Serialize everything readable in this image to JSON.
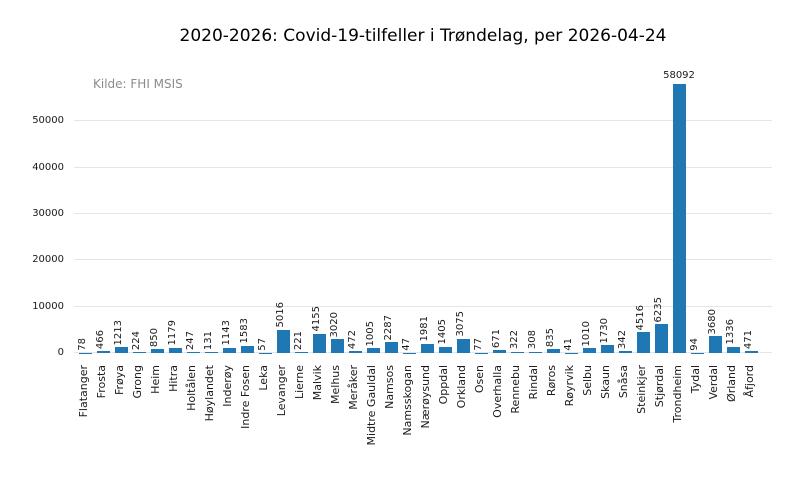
{
  "figure": {
    "title": "2020-2026: Covid-19-tilfeller i Trøndelag, per 2026-04-24",
    "annotation": "Kilde: FHI MSIS"
  },
  "chart_data": {
    "type": "bar",
    "title": "2020-2026: Covid-19-tilfeller i Trøndelag, per 2026-04-24",
    "annotation": "Kilde: FHI MSIS",
    "xlabel": "",
    "ylabel": "",
    "categories": [
      "Flatanger",
      "Frosta",
      "Frøya",
      "Grong",
      "Heim",
      "Hitra",
      "Holtålen",
      "Høylandet",
      "Inderøy",
      "Indre Fosen",
      "Leka",
      "Levanger",
      "Lierne",
      "Malvik",
      "Melhus",
      "Meråker",
      "Midtre Gauldal",
      "Namsos",
      "Namsskogan",
      "Nærøysund",
      "Oppdal",
      "Orkland",
      "Osen",
      "Overhalla",
      "Rennebu",
      "Rindal",
      "Røros",
      "Røyrvik",
      "Selbu",
      "Skaun",
      "Snåsa",
      "Steinkjer",
      "Stjørdal",
      "Trondheim",
      "Tydal",
      "Verdal",
      "Ørland",
      "Åfjord"
    ],
    "values": [
      78,
      466,
      1213,
      224,
      850,
      1179,
      247,
      131,
      1143,
      1583,
      57,
      5016,
      221,
      4155,
      3020,
      472,
      1005,
      2287,
      47,
      1981,
      1405,
      3075,
      77,
      671,
      322,
      308,
      835,
      41,
      1010,
      1730,
      342,
      4516,
      6235,
      58092,
      94,
      3680,
      1336,
      471
    ],
    "yticks": [
      0,
      10000,
      20000,
      30000,
      40000,
      50000
    ],
    "ylim": [
      0,
      60000
    ],
    "grid": "horizontal",
    "value_labels": true,
    "value_label_rotation": "vertical",
    "horizontal_label_category": "Trondheim",
    "xtick_rotation": "vertical",
    "legend": "none",
    "colors": {
      "bar": "#1f77b4",
      "grid": "#e5e5e5",
      "text": "#1a1a1a",
      "annotation": "#8c8c8c"
    }
  }
}
